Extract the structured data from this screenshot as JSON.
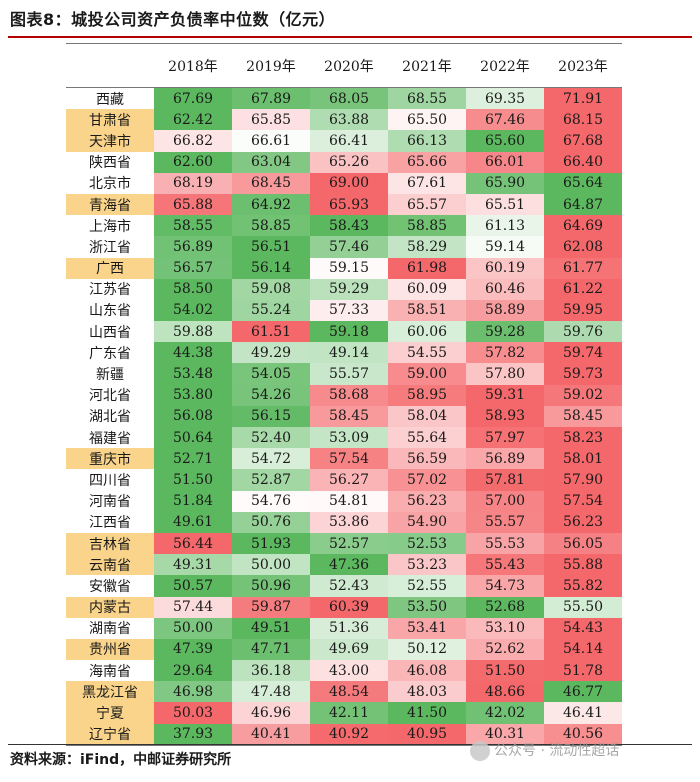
{
  "title": "图表8：城投公司资产负债率中位数（亿元）",
  "source": "资料来源：iFind，中邮证券研究所",
  "watermark": "公众号 · 流动性超话",
  "years": [
    "2018年",
    "2019年",
    "2020年",
    "2021年",
    "2022年",
    "2023年"
  ],
  "rows": [
    {
      "province": "西藏",
      "values": [
        "67.69",
        "67.89",
        "68.05",
        "68.55",
        "69.35",
        "71.91"
      ],
      "highlight": false
    },
    {
      "province": "甘肃省",
      "values": [
        "62.42",
        "65.85",
        "63.88",
        "65.50",
        "67.46",
        "68.15"
      ],
      "highlight": true
    },
    {
      "province": "天津市",
      "values": [
        "66.82",
        "66.61",
        "66.41",
        "66.13",
        "65.60",
        "67.68"
      ],
      "highlight": true
    },
    {
      "province": "陕西省",
      "values": [
        "62.60",
        "63.04",
        "65.26",
        "65.66",
        "66.01",
        "66.40"
      ],
      "highlight": false
    },
    {
      "province": "北京市",
      "values": [
        "68.19",
        "68.45",
        "69.00",
        "67.61",
        "65.90",
        "65.64"
      ],
      "highlight": false
    },
    {
      "province": "青海省",
      "values": [
        "65.88",
        "64.92",
        "65.93",
        "65.57",
        "65.51",
        "64.87"
      ],
      "highlight": true
    },
    {
      "province": "上海市",
      "values": [
        "58.55",
        "58.85",
        "58.43",
        "58.85",
        "61.13",
        "64.69"
      ],
      "highlight": false
    },
    {
      "province": "浙江省",
      "values": [
        "56.89",
        "56.51",
        "57.46",
        "58.29",
        "59.14",
        "62.08"
      ],
      "highlight": false
    },
    {
      "province": "广西",
      "values": [
        "56.57",
        "56.14",
        "59.15",
        "61.98",
        "60.19",
        "61.77"
      ],
      "highlight": true
    },
    {
      "province": "江苏省",
      "values": [
        "58.50",
        "59.08",
        "59.29",
        "60.09",
        "60.46",
        "61.22"
      ],
      "highlight": false
    },
    {
      "province": "山东省",
      "values": [
        "54.02",
        "55.24",
        "57.33",
        "58.51",
        "58.89",
        "59.95"
      ],
      "highlight": false
    },
    {
      "province": "山西省",
      "values": [
        "59.88",
        "61.51",
        "59.18",
        "60.06",
        "59.28",
        "59.76"
      ],
      "highlight": false
    },
    {
      "province": "广东省",
      "values": [
        "44.38",
        "49.29",
        "49.14",
        "54.55",
        "57.82",
        "59.74"
      ],
      "highlight": false
    },
    {
      "province": "新疆",
      "values": [
        "53.48",
        "54.05",
        "55.57",
        "59.00",
        "57.80",
        "59.73"
      ],
      "highlight": false
    },
    {
      "province": "河北省",
      "values": [
        "53.80",
        "54.26",
        "58.68",
        "58.95",
        "59.31",
        "59.02"
      ],
      "highlight": false
    },
    {
      "province": "湖北省",
      "values": [
        "56.08",
        "56.15",
        "58.45",
        "58.04",
        "58.93",
        "58.45"
      ],
      "highlight": false
    },
    {
      "province": "福建省",
      "values": [
        "50.64",
        "52.40",
        "53.09",
        "55.64",
        "57.97",
        "58.23"
      ],
      "highlight": false
    },
    {
      "province": "重庆市",
      "values": [
        "52.71",
        "54.72",
        "57.54",
        "56.59",
        "56.89",
        "58.01"
      ],
      "highlight": true
    },
    {
      "province": "四川省",
      "values": [
        "51.50",
        "52.87",
        "56.27",
        "57.02",
        "57.81",
        "57.90"
      ],
      "highlight": false
    },
    {
      "province": "河南省",
      "values": [
        "51.84",
        "54.76",
        "54.81",
        "56.23",
        "57.00",
        "57.54"
      ],
      "highlight": false
    },
    {
      "province": "江西省",
      "values": [
        "49.61",
        "50.76",
        "53.86",
        "54.90",
        "55.57",
        "56.23"
      ],
      "highlight": false
    },
    {
      "province": "吉林省",
      "values": [
        "56.44",
        "51.93",
        "52.57",
        "52.53",
        "55.53",
        "56.05"
      ],
      "highlight": true
    },
    {
      "province": "云南省",
      "values": [
        "49.31",
        "50.00",
        "47.36",
        "53.23",
        "55.43",
        "55.88"
      ],
      "highlight": true
    },
    {
      "province": "安徽省",
      "values": [
        "50.57",
        "50.96",
        "52.43",
        "52.55",
        "54.73",
        "55.82"
      ],
      "highlight": false
    },
    {
      "province": "内蒙古",
      "values": [
        "57.44",
        "59.87",
        "60.39",
        "53.50",
        "52.68",
        "55.50"
      ],
      "highlight": true
    },
    {
      "province": "湖南省",
      "values": [
        "50.00",
        "49.51",
        "51.36",
        "53.41",
        "53.10",
        "54.43"
      ],
      "highlight": false
    },
    {
      "province": "贵州省",
      "values": [
        "47.39",
        "47.71",
        "49.69",
        "50.12",
        "52.62",
        "54.14"
      ],
      "highlight": true
    },
    {
      "province": "海南省",
      "values": [
        "29.64",
        "36.18",
        "43.00",
        "46.08",
        "51.50",
        "51.78"
      ],
      "highlight": false
    },
    {
      "province": "黑龙江省",
      "values": [
        "46.98",
        "47.48",
        "48.54",
        "48.03",
        "48.66",
        "46.77"
      ],
      "highlight": true
    },
    {
      "province": "宁夏",
      "values": [
        "50.03",
        "46.96",
        "42.11",
        "41.50",
        "42.02",
        "46.41"
      ],
      "highlight": true
    },
    {
      "province": "辽宁省",
      "values": [
        "37.93",
        "40.41",
        "40.92",
        "40.95",
        "40.31",
        "40.56"
      ],
      "highlight": true
    }
  ],
  "colors": {
    "low": "#5cb85f",
    "mid": "#ffffff",
    "high": "#f4676a",
    "highlight": "#fad48a",
    "title_rule": "#b40000"
  }
}
